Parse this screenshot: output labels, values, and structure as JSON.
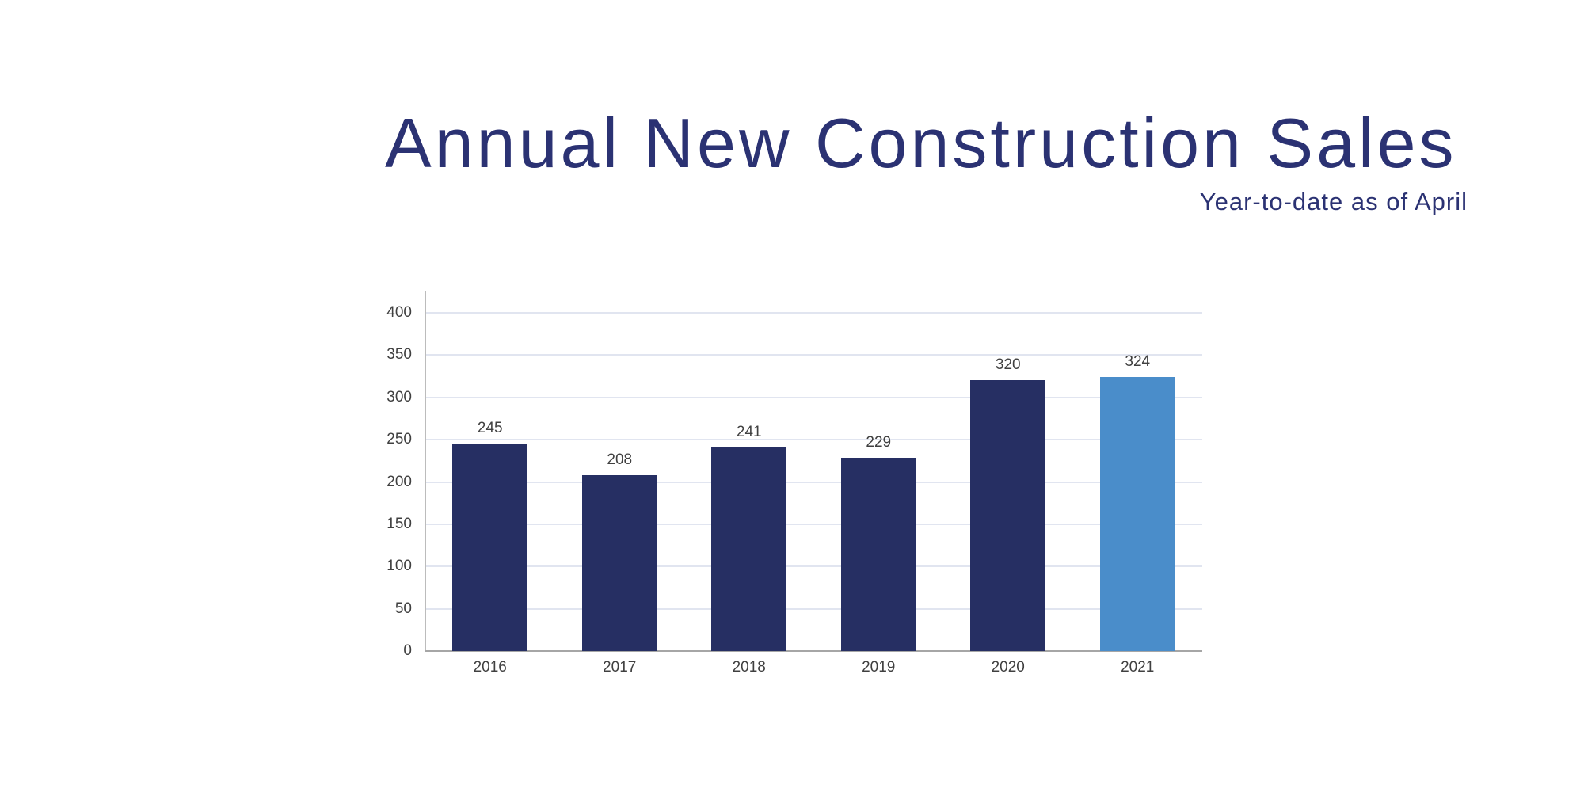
{
  "header": {
    "title": "Annual New Construction Sales",
    "subtitle": "Year-to-date as of April"
  },
  "chart_data": {
    "type": "bar",
    "title": "Annual New Construction Sales",
    "subtitle": "Year-to-date as of April",
    "categories": [
      "2016",
      "2017",
      "2018",
      "2019",
      "2020",
      "2021"
    ],
    "values": [
      245,
      208,
      241,
      229,
      320,
      324
    ],
    "y_ticks": [
      0,
      50,
      100,
      150,
      200,
      250,
      300,
      350,
      400
    ],
    "ylim": [
      0,
      400
    ],
    "grid": true,
    "legend": "none",
    "data_labels_shown": true,
    "highlight_category": "2021",
    "bar_color_default": "#262F63",
    "bar_color_highlight": "#4A8DCA",
    "colors": {
      "title": "#2B3273",
      "axis_label": "#404040",
      "gridline": "#E1E5F0",
      "y_axis_line": "#BCBCBC",
      "x_axis_line": "#A6A6A6",
      "background": "#FFFFFF"
    }
  }
}
